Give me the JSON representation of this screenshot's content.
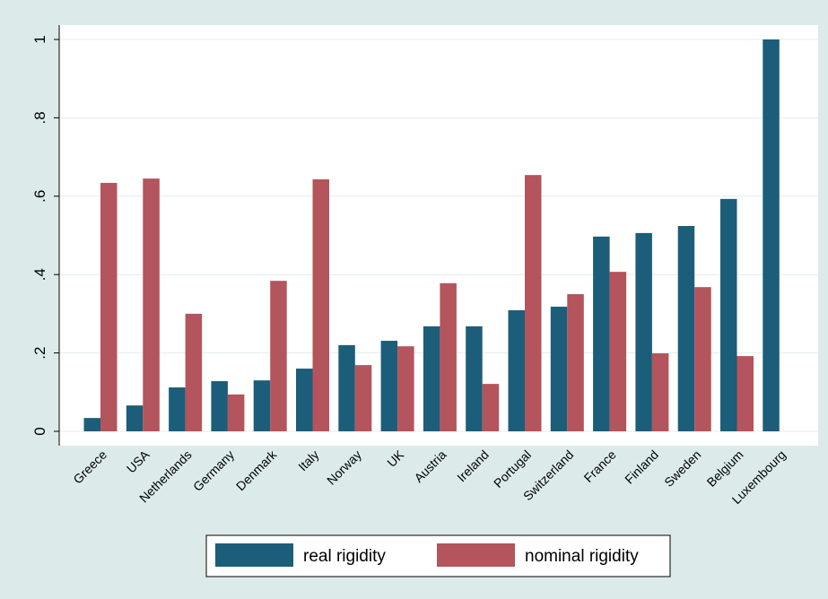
{
  "chart_data": {
    "type": "bar",
    "categories": [
      "Greece",
      "USA",
      "Netherlands",
      "Germany",
      "Denmark",
      "Italy",
      "Norway",
      "UK",
      "Austria",
      "Ireland",
      "Portugal",
      "Switzerland",
      "France",
      "Finland",
      "Sweden",
      "Belgium",
      "Luxembourg"
    ],
    "series": [
      {
        "name": "real rigidity",
        "color": "#1c5d79",
        "values": [
          0.034,
          0.066,
          0.112,
          0.128,
          0.13,
          0.16,
          0.22,
          0.231,
          0.268,
          0.268,
          0.309,
          0.318,
          0.497,
          0.506,
          0.524,
          0.593,
          1.0
        ]
      },
      {
        "name": "nominal rigidity",
        "color": "#b4545c",
        "values": [
          0.634,
          0.645,
          0.3,
          0.094,
          0.384,
          0.643,
          0.169,
          0.217,
          0.378,
          0.121,
          0.654,
          0.35,
          0.407,
          0.199,
          0.368,
          0.192,
          null
        ]
      }
    ],
    "ylim": [
      0,
      1
    ],
    "yticks": [
      0,
      {
        "value": 0.2,
        "label": ".2"
      },
      {
        "value": 0.4,
        "label": ".4"
      },
      {
        "value": 0.6,
        "label": ".6"
      },
      {
        "value": 0.8,
        "label": ".8"
      },
      1
    ],
    "grid": true,
    "legend": "bottom"
  }
}
